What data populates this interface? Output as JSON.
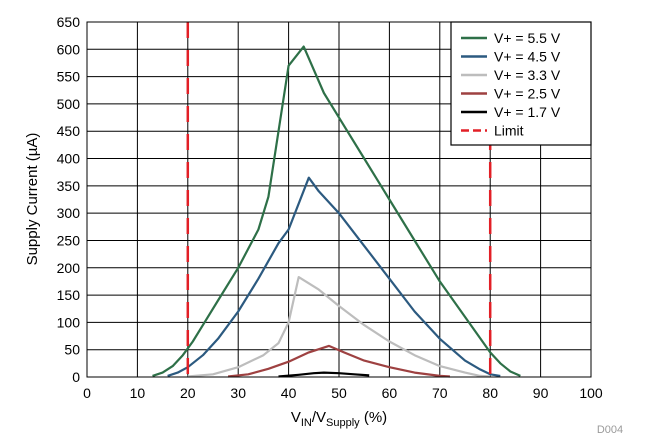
{
  "chart_data": {
    "type": "line",
    "xlabel": {
      "main": "V",
      "sub1": "IN",
      "mid": "/V",
      "sub2": "Supply",
      "tail": " (%)"
    },
    "ylabel": "Supply Current (µA)",
    "xlim": [
      0,
      100
    ],
    "ylim": [
      0,
      650
    ],
    "x_ticks": [
      0,
      10,
      20,
      30,
      40,
      50,
      60,
      70,
      80,
      90,
      100
    ],
    "y_ticks": [
      0,
      50,
      100,
      150,
      200,
      250,
      300,
      350,
      400,
      450,
      500,
      550,
      600,
      650
    ],
    "grid": true,
    "legend_position": "top-right",
    "corner_label": "D004",
    "series": [
      {
        "name": "V+ = 5.5 V",
        "color": "#2e7048",
        "dash": false,
        "points": [
          [
            13,
            2
          ],
          [
            15,
            8
          ],
          [
            17,
            20
          ],
          [
            19,
            40
          ],
          [
            21,
            65
          ],
          [
            23,
            95
          ],
          [
            26,
            140
          ],
          [
            30,
            200
          ],
          [
            34,
            270
          ],
          [
            36,
            330
          ],
          [
            40,
            570
          ],
          [
            43,
            605
          ],
          [
            47,
            520
          ],
          [
            50,
            475
          ],
          [
            55,
            400
          ],
          [
            60,
            325
          ],
          [
            65,
            250
          ],
          [
            70,
            175
          ],
          [
            75,
            110
          ],
          [
            80,
            45
          ],
          [
            82,
            25
          ],
          [
            84,
            10
          ],
          [
            86,
            2
          ]
        ]
      },
      {
        "name": "V+ = 4.5 V",
        "color": "#2c5a80",
        "dash": false,
        "points": [
          [
            16,
            2
          ],
          [
            18,
            8
          ],
          [
            20,
            18
          ],
          [
            23,
            40
          ],
          [
            26,
            70
          ],
          [
            30,
            120
          ],
          [
            34,
            180
          ],
          [
            38,
            245
          ],
          [
            40,
            270
          ],
          [
            44,
            365
          ],
          [
            46,
            340
          ],
          [
            50,
            300
          ],
          [
            55,
            240
          ],
          [
            60,
            180
          ],
          [
            65,
            120
          ],
          [
            70,
            70
          ],
          [
            75,
            30
          ],
          [
            78,
            14
          ],
          [
            80,
            5
          ],
          [
            82,
            2
          ]
        ]
      },
      {
        "name": "V+ = 3.3 V",
        "color": "#bdbdbd",
        "dash": false,
        "points": [
          [
            20,
            1
          ],
          [
            25,
            5
          ],
          [
            30,
            18
          ],
          [
            35,
            40
          ],
          [
            38,
            62
          ],
          [
            40,
            100
          ],
          [
            42,
            183
          ],
          [
            46,
            160
          ],
          [
            50,
            130
          ],
          [
            55,
            95
          ],
          [
            60,
            65
          ],
          [
            65,
            40
          ],
          [
            70,
            20
          ],
          [
            75,
            8
          ],
          [
            78,
            2
          ],
          [
            80,
            1
          ]
        ]
      },
      {
        "name": "V+ = 2.5 V",
        "color": "#9e4141",
        "dash": false,
        "points": [
          [
            28,
            1
          ],
          [
            32,
            5
          ],
          [
            36,
            15
          ],
          [
            40,
            28
          ],
          [
            44,
            45
          ],
          [
            48,
            57
          ],
          [
            51,
            45
          ],
          [
            55,
            30
          ],
          [
            60,
            18
          ],
          [
            65,
            8
          ],
          [
            70,
            2
          ],
          [
            72,
            1
          ]
        ]
      },
      {
        "name": "V+ = 1.7 V",
        "color": "#000000",
        "dash": false,
        "points": [
          [
            38,
            1
          ],
          [
            42,
            4
          ],
          [
            45,
            7
          ],
          [
            47,
            8
          ],
          [
            50,
            7
          ],
          [
            53,
            5
          ],
          [
            56,
            3
          ]
        ]
      },
      {
        "name": "Limit",
        "color": "#e21f26",
        "dash": true,
        "lines": [
          {
            "x": 20,
            "y": [
              0,
              650
            ]
          },
          {
            "x": 80,
            "y": [
              0,
              650
            ]
          }
        ]
      }
    ]
  }
}
